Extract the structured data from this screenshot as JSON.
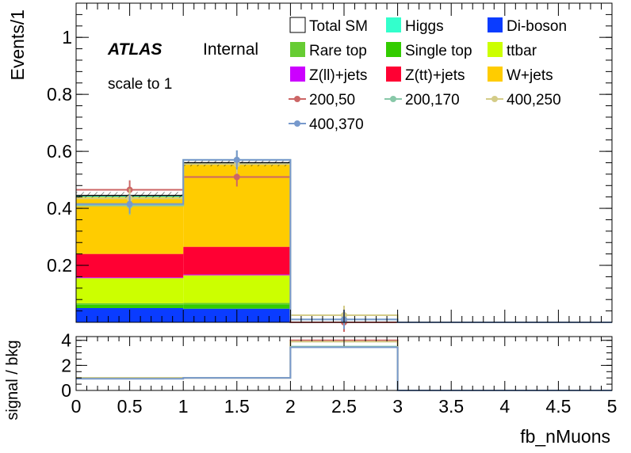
{
  "chart_data": [
    {
      "type": "bar",
      "panel": "main",
      "stacked": true,
      "ylabel": "Events/1",
      "ylim": [
        0,
        1.12
      ],
      "yticks": [
        "0.2",
        "0.4",
        "0.6",
        "0.8",
        "1"
      ],
      "xlim": [
        0,
        5
      ],
      "atlas_label": "ATLAS",
      "atlas_status": "Internal",
      "note": "scale to 1",
      "bins": [
        [
          0,
          1
        ],
        [
          1,
          2
        ],
        [
          2,
          3
        ],
        [
          3,
          4
        ],
        [
          4,
          5
        ]
      ],
      "series": [
        {
          "name": "Di-boson",
          "color": "#0a3cff",
          "values": [
            0.05,
            0.048,
            0.0,
            0,
            0
          ]
        },
        {
          "name": "Single top",
          "color": "#33cc00",
          "values": [
            0.012,
            0.015,
            0.0,
            0,
            0
          ]
        },
        {
          "name": "Rare top",
          "color": "#66cc33",
          "values": [
            0.005,
            0.005,
            0.0,
            0,
            0
          ]
        },
        {
          "name": "ttbar",
          "color": "#ccff00",
          "values": [
            0.088,
            0.097,
            0.0,
            0,
            0
          ]
        },
        {
          "name": "Z(ll)+jets",
          "color": "#cc00ff",
          "values": [
            0.003,
            0.003,
            0.0,
            0,
            0
          ]
        },
        {
          "name": "Z(tt)+jets",
          "color": "#ff0033",
          "values": [
            0.082,
            0.097,
            0.0,
            0,
            0
          ]
        },
        {
          "name": "W+jets",
          "color": "#ffcc00",
          "values": [
            0.2,
            0.29,
            0.0,
            0,
            0
          ]
        },
        {
          "name": "Higgs",
          "color": "#33ffcc",
          "values": [
            0.003,
            0.003,
            0.0,
            0,
            0
          ]
        }
      ],
      "total": {
        "name": "Total SM",
        "values": [
          0.445,
          0.56,
          0.0,
          0,
          0
        ]
      },
      "signals": [
        {
          "name": "200,50",
          "color": "#cc6666",
          "values": [
            0.465,
            0.51,
            0.0,
            0,
            0
          ],
          "points": [
            [
              0.5,
              0.465
            ],
            [
              1.5,
              0.51
            ],
            [
              2.5,
              0.0
            ]
          ]
        },
        {
          "name": "200,170",
          "color": "#88c8a8",
          "values": [
            0.41,
            0.57,
            0.01,
            0,
            0
          ],
          "points": [
            [
              0.5,
              0.41
            ],
            [
              1.5,
              0.57
            ],
            [
              2.5,
              0.01
            ]
          ]
        },
        {
          "name": "400,250",
          "color": "#d4cc88",
          "values": [
            0.435,
            0.555,
            0.025,
            0,
            0
          ],
          "points": [
            [
              0.5,
              0.435
            ],
            [
              1.5,
              0.555
            ],
            [
              2.5,
              0.025
            ]
          ]
        },
        {
          "name": "400,370",
          "color": "#7799cc",
          "values": [
            0.415,
            0.57,
            0.01,
            0,
            0
          ],
          "points": [
            [
              0.5,
              0.415
            ],
            [
              1.5,
              0.57
            ],
            [
              2.5,
              0.01
            ]
          ]
        }
      ]
    },
    {
      "type": "line",
      "panel": "ratio",
      "step": true,
      "ylabel": "signal / bkg",
      "xlabel": "fb_nMuons",
      "ylim": [
        0,
        4.3
      ],
      "yticks": [
        "0",
        "2",
        "4"
      ],
      "xlim": [
        0,
        5
      ],
      "xticks": [
        "0",
        "0.5",
        "1",
        "1.5",
        "2",
        "2.5",
        "3",
        "3.5",
        "4",
        "4.5",
        "5"
      ],
      "bins": [
        [
          0,
          1
        ],
        [
          1,
          2
        ],
        [
          2,
          3
        ],
        [
          3,
          4
        ],
        [
          4,
          5
        ]
      ],
      "series": [
        {
          "name": "200,50",
          "color": "#cc6666",
          "values": [
            1.0,
            1.0,
            4.0,
            0,
            0
          ]
        },
        {
          "name": "200,170",
          "color": "#88c8a8",
          "values": [
            1.0,
            1.0,
            3.5,
            0,
            0
          ]
        },
        {
          "name": "400,250",
          "color": "#d4cc88",
          "values": [
            1.0,
            1.0,
            3.9,
            0,
            0
          ]
        },
        {
          "name": "400,370",
          "color": "#7799cc",
          "values": [
            0.93,
            1.0,
            3.45,
            0,
            0
          ]
        }
      ]
    }
  ],
  "legend": {
    "items": [
      {
        "label": "Total SM",
        "kind": "box",
        "color": "#ffffff"
      },
      {
        "label": "Higgs",
        "kind": "box",
        "color": "#33ffcc"
      },
      {
        "label": "Di-boson",
        "kind": "box",
        "color": "#0a3cff"
      },
      {
        "label": "Rare top",
        "kind": "box",
        "color": "#66cc33"
      },
      {
        "label": "Single top",
        "kind": "box",
        "color": "#33cc00"
      },
      {
        "label": "ttbar",
        "kind": "box",
        "color": "#ccff00"
      },
      {
        "label": "Z(ll)+jets",
        "kind": "box",
        "color": "#cc00ff"
      },
      {
        "label": "Z(tt)+jets",
        "kind": "box",
        "color": "#ff0033"
      },
      {
        "label": "W+jets",
        "kind": "box",
        "color": "#ffcc00"
      },
      {
        "label": "200,50",
        "kind": "marker",
        "color": "#cc6666"
      },
      {
        "label": "200,170",
        "kind": "marker",
        "color": "#88c8a8"
      },
      {
        "label": "400,250",
        "kind": "marker",
        "color": "#d4cc88"
      },
      {
        "label": "400,370",
        "kind": "marker",
        "color": "#7799cc"
      }
    ]
  }
}
